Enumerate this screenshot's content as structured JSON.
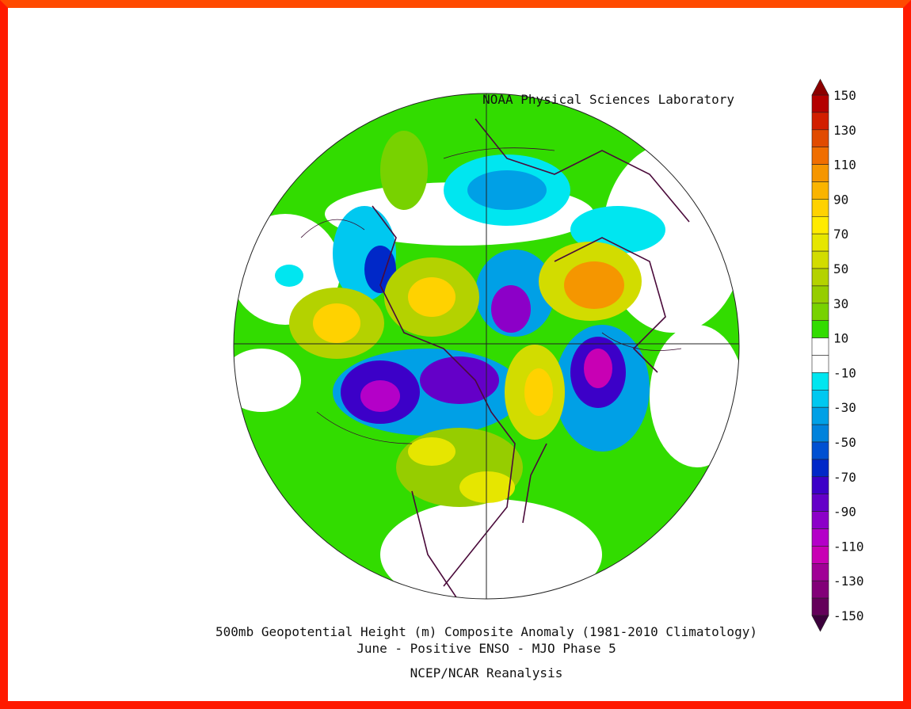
{
  "header": {
    "credit": "NOAA Physical Sciences Laboratory"
  },
  "caption": {
    "title": "500mb Geopotential Height (m) Composite Anomaly (1981-2010 Climatology)",
    "subtitle": "June - Positive ENSO - MJO Phase 5",
    "source": "NCEP/NCAR Reanalysis"
  },
  "colorbar": {
    "labels": [
      150,
      130,
      110,
      90,
      70,
      50,
      30,
      10,
      -10,
      -30,
      -50,
      -70,
      -90,
      -110,
      -130,
      -150
    ],
    "min": -150,
    "max": 150,
    "over_color": "#8c0000",
    "under_color": "#3c003c",
    "colors": [
      "#b40000",
      "#d21e00",
      "#e14b00",
      "#f06e00",
      "#f59600",
      "#fab400",
      "#ffd200",
      "#ffeb00",
      "#e6e600",
      "#d2dc00",
      "#b4d200",
      "#96cd00",
      "#78d200",
      "#32dc00",
      "#ffffff",
      "#ffffff",
      "#00e6f0",
      "#00c8f0",
      "#00a0e6",
      "#0082dc",
      "#0050d2",
      "#0028c8",
      "#3c00c8",
      "#6400c8",
      "#8c00c8",
      "#b400c8",
      "#c800b4",
      "#a00096",
      "#820078",
      "#64005a"
    ]
  }
}
